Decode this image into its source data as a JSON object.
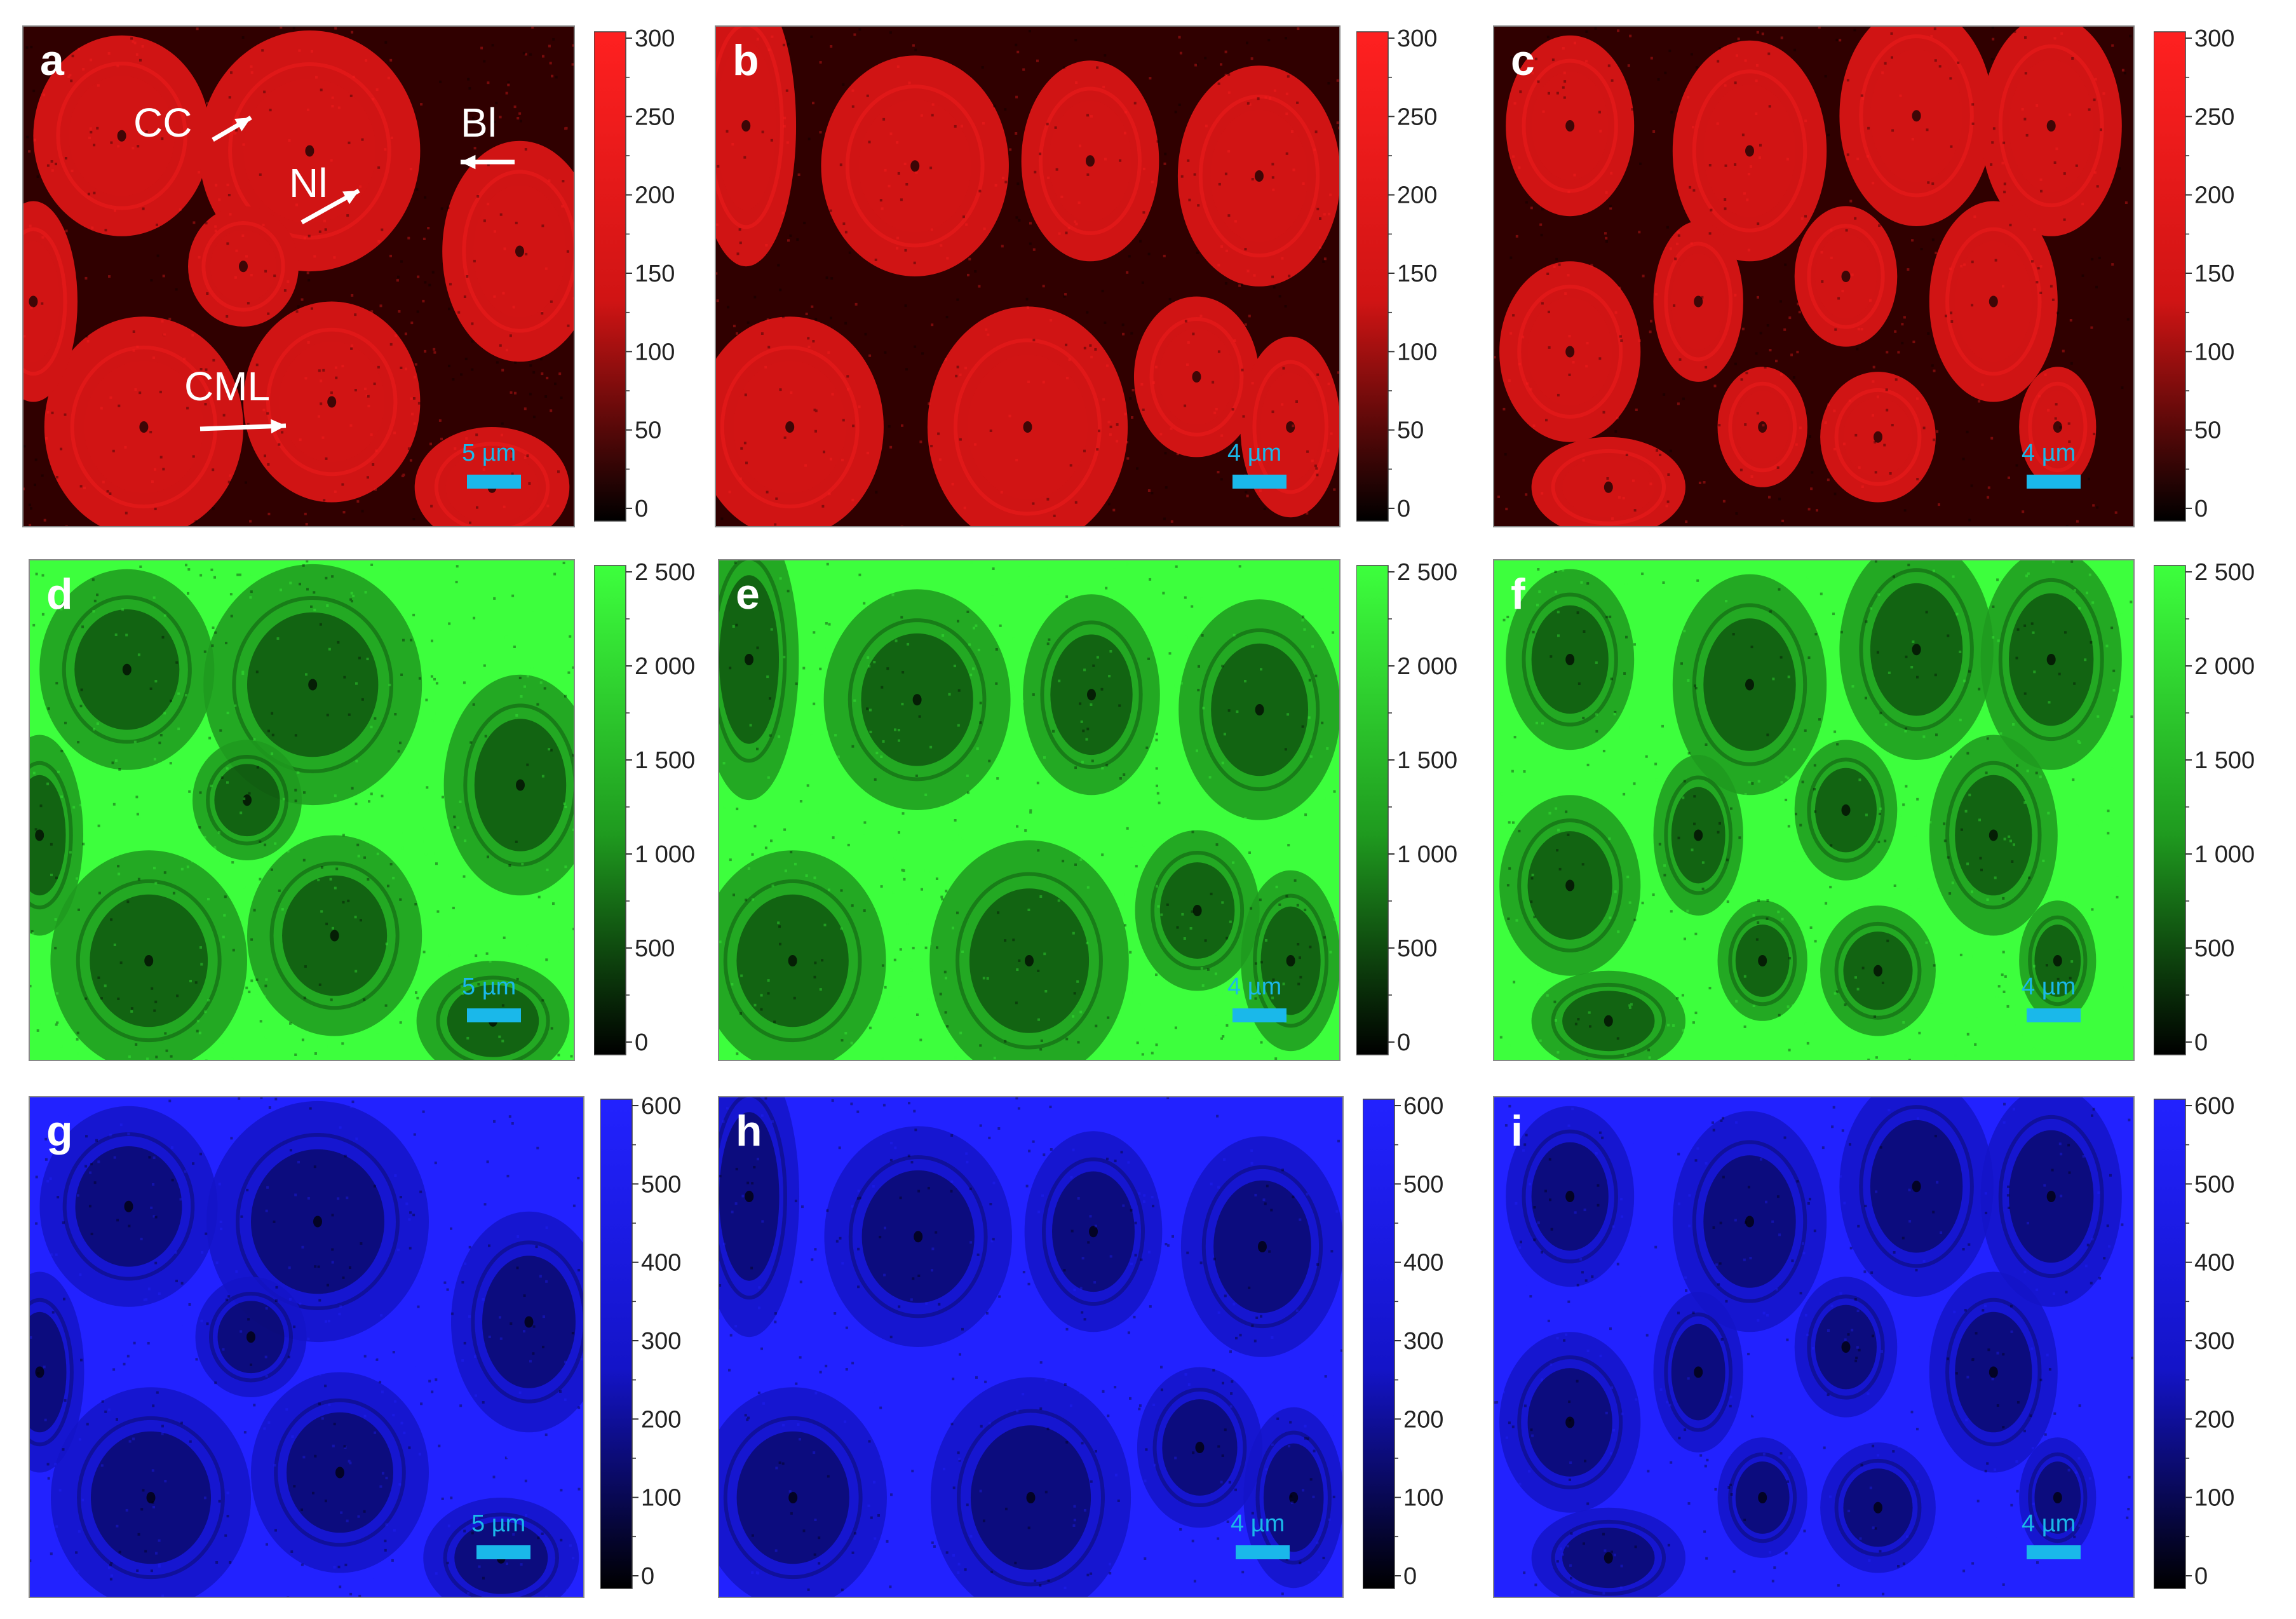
{
  "figure": {
    "rows": [
      {
        "channel": "red",
        "colors": {
          "base": "#d01414",
          "bright": "#ff2020",
          "dark": "#300000"
        },
        "colorbar": {
          "ticks": [
            "300",
            "250",
            "200",
            "150",
            "100",
            "50",
            "0"
          ]
        },
        "panels": [
          {
            "letter": "a",
            "scale_label": "5 µm",
            "annotations": [
              {
                "label": "CC",
                "arrow_dir": "up-right"
              },
              {
                "label": "Nl",
                "arrow_dir": "up-right"
              },
              {
                "label": "Bl",
                "arrow_dir": "left"
              },
              {
                "label": "CML",
                "arrow_dir": "right"
              }
            ]
          },
          {
            "letter": "b",
            "scale_label": "4 µm",
            "annotations": []
          },
          {
            "letter": "c",
            "scale_label": "4 µm",
            "annotations": []
          }
        ]
      },
      {
        "channel": "green",
        "colors": {
          "base": "#1f9a1f",
          "bright": "#3dff3d",
          "dark": "#052b05"
        },
        "colorbar": {
          "ticks": [
            "2 500",
            "2 000",
            "1 500",
            "1 000",
            "500",
            "0"
          ]
        },
        "panels": [
          {
            "letter": "d",
            "scale_label": "5 µm",
            "annotations": []
          },
          {
            "letter": "e",
            "scale_label": "4 µm",
            "annotations": []
          },
          {
            "letter": "f",
            "scale_label": "4 µm",
            "annotations": []
          }
        ]
      },
      {
        "channel": "blue",
        "colors": {
          "base": "#1414c8",
          "bright": "#2222ff",
          "dark": "#05053a"
        },
        "colorbar": {
          "ticks": [
            "600",
            "500",
            "400",
            "300",
            "200",
            "100",
            "0"
          ]
        },
        "panels": [
          {
            "letter": "g",
            "scale_label": "5 µm",
            "annotations": []
          },
          {
            "letter": "h",
            "scale_label": "4 µm",
            "annotations": []
          },
          {
            "letter": "i",
            "scale_label": "4 µm",
            "annotations": []
          }
        ]
      }
    ],
    "scale_bar_color": "#1ab8ea",
    "label_color": "#ffffff"
  }
}
